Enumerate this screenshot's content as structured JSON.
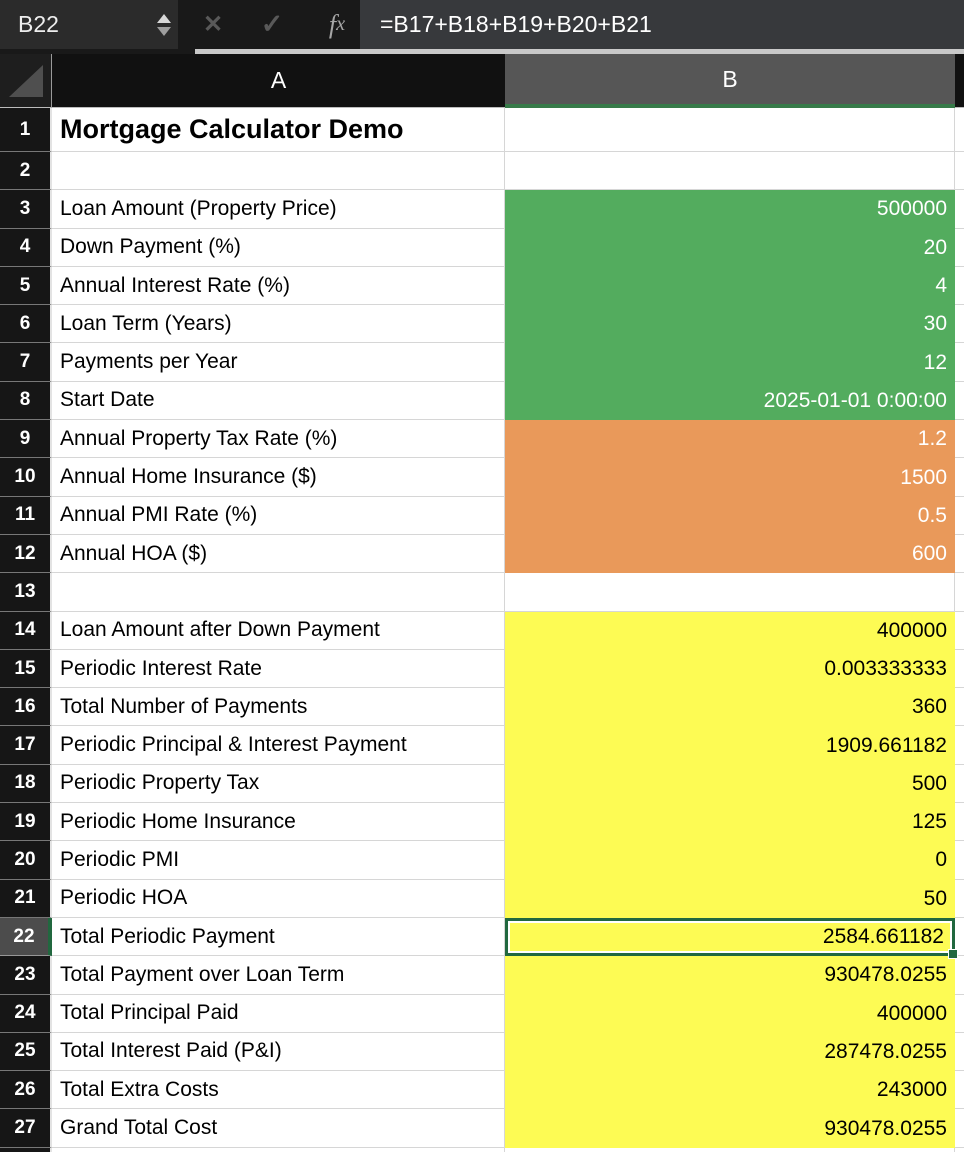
{
  "formula_bar": {
    "cell_reference": "B22",
    "cancel_icon": "✕",
    "confirm_icon": "✓",
    "fx_label_f": "f",
    "fx_label_x": "x",
    "formula": "=B17+B18+B19+B20+B21"
  },
  "grid": {
    "column_headers": [
      "A",
      "B"
    ],
    "selected_cell": "B22"
  },
  "colors": {
    "input_green": "#53ac5e",
    "extra_orange": "#e9995a",
    "calc_yellow": "#fdfb54",
    "selection_green": "#21683f",
    "header_accent_green": "#377a49"
  },
  "rows": [
    {
      "num": "1",
      "label": "Mortgage Calculator Demo",
      "value": "",
      "fill": "none",
      "title": true
    },
    {
      "num": "2",
      "label": "",
      "value": "",
      "fill": "none"
    },
    {
      "num": "3",
      "label": "Loan Amount (Property Price)",
      "value": "500000",
      "fill": "green"
    },
    {
      "num": "4",
      "label": "Down Payment (%)",
      "value": "20",
      "fill": "green"
    },
    {
      "num": "5",
      "label": "Annual Interest Rate (%)",
      "value": "4",
      "fill": "green"
    },
    {
      "num": "6",
      "label": "Loan Term (Years)",
      "value": "30",
      "fill": "green"
    },
    {
      "num": "7",
      "label": "Payments per Year",
      "value": "12",
      "fill": "green"
    },
    {
      "num": "8",
      "label": "Start Date",
      "value": "2025-01-01 0:00:00",
      "fill": "green"
    },
    {
      "num": "9",
      "label": "Annual Property Tax Rate (%)",
      "value": "1.2",
      "fill": "orange"
    },
    {
      "num": "10",
      "label": "Annual Home Insurance ($)",
      "value": "1500",
      "fill": "orange"
    },
    {
      "num": "11",
      "label": "Annual PMI Rate (%)",
      "value": "0.5",
      "fill": "orange"
    },
    {
      "num": "12",
      "label": "Annual HOA ($)",
      "value": "600",
      "fill": "orange"
    },
    {
      "num": "13",
      "label": "",
      "value": "",
      "fill": "none"
    },
    {
      "num": "14",
      "label": "Loan Amount after Down Payment",
      "value": "400000",
      "fill": "yellow"
    },
    {
      "num": "15",
      "label": "Periodic Interest Rate",
      "value": "0.003333333",
      "fill": "yellow"
    },
    {
      "num": "16",
      "label": "Total Number of Payments",
      "value": "360",
      "fill": "yellow"
    },
    {
      "num": "17",
      "label": "Periodic Principal & Interest Payment",
      "value": "1909.661182",
      "fill": "yellow"
    },
    {
      "num": "18",
      "label": "Periodic Property Tax",
      "value": "500",
      "fill": "yellow"
    },
    {
      "num": "19",
      "label": "Periodic Home Insurance",
      "value": "125",
      "fill": "yellow"
    },
    {
      "num": "20",
      "label": "Periodic PMI",
      "value": "0",
      "fill": "yellow"
    },
    {
      "num": "21",
      "label": "Periodic HOA",
      "value": "50",
      "fill": "yellow"
    },
    {
      "num": "22",
      "label": "Total Periodic Payment",
      "value": "2584.661182",
      "fill": "yellow",
      "selected": true
    },
    {
      "num": "23",
      "label": "Total Payment over Loan Term",
      "value": "930478.0255",
      "fill": "yellow"
    },
    {
      "num": "24",
      "label": "Total Principal Paid",
      "value": "400000",
      "fill": "yellow"
    },
    {
      "num": "25",
      "label": "Total Interest Paid (P&I)",
      "value": "287478.0255",
      "fill": "yellow"
    },
    {
      "num": "26",
      "label": "Total Extra Costs",
      "value": "243000",
      "fill": "yellow"
    },
    {
      "num": "27",
      "label": "Grand Total Cost",
      "value": "930478.0255",
      "fill": "yellow"
    },
    {
      "num": "",
      "label": "",
      "value": "",
      "fill": "none"
    }
  ]
}
